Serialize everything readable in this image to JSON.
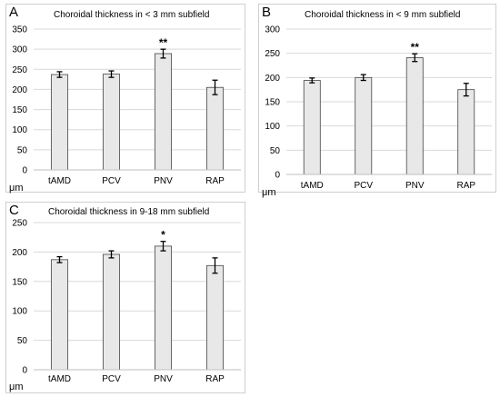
{
  "chart_data": [
    {
      "type": "bar",
      "panel_label": "A",
      "title": "Choroidal thickness in < 3 mm subfield",
      "ylabel": "μm",
      "categories": [
        "tAMD",
        "PCV",
        "PNV",
        "RAP"
      ],
      "values": [
        237,
        238,
        289,
        205
      ],
      "errors": [
        7,
        8,
        11,
        18
      ],
      "annotations": [
        "",
        "",
        "**",
        ""
      ],
      "ylim": [
        0,
        350
      ],
      "yticks": [
        0,
        50,
        100,
        150,
        200,
        250,
        300,
        350
      ],
      "bar_color": "#e8e8e8",
      "grid": true
    },
    {
      "type": "bar",
      "panel_label": "B",
      "title": "Choroidal thickness in < 9 mm subfield",
      "ylabel": "μm",
      "categories": [
        "tAMD",
        "PCV",
        "PNV",
        "RAP"
      ],
      "values": [
        194,
        200,
        241,
        175
      ],
      "errors": [
        5,
        6,
        8,
        13
      ],
      "annotations": [
        "",
        "",
        "**",
        ""
      ],
      "ylim": [
        0,
        300
      ],
      "yticks": [
        0,
        50,
        100,
        150,
        200,
        250,
        300
      ],
      "bar_color": "#e8e8e8",
      "grid": true
    },
    {
      "type": "bar",
      "panel_label": "C",
      "title": "Choroidal thickness in 9-18 mm subfield",
      "ylabel": "μm",
      "categories": [
        "tAMD",
        "PCV",
        "PNV",
        "RAP"
      ],
      "values": [
        187,
        196,
        210,
        177
      ],
      "errors": [
        5,
        6,
        8,
        13
      ],
      "annotations": [
        "",
        "",
        "*",
        ""
      ],
      "ylim": [
        0,
        250
      ],
      "yticks": [
        0,
        50,
        100,
        150,
        200,
        250
      ],
      "bar_color": "#e8e8e8",
      "grid": true
    }
  ]
}
